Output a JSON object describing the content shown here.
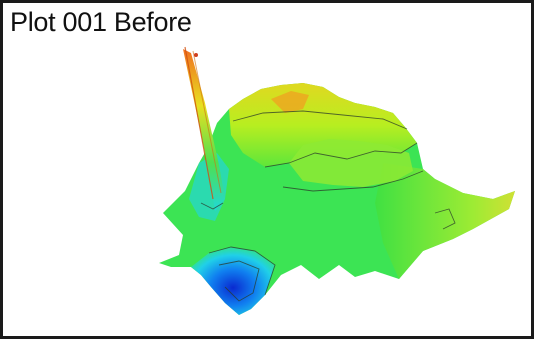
{
  "title": "Plot 001 Before",
  "colors": {
    "border": "#1a1a1a",
    "background": "#ffffff",
    "low": "#0a3ad8",
    "mid_low": "#1fd4e0",
    "mid": "#2ee04a",
    "mid_high": "#c8f020",
    "high": "#f07020"
  }
}
